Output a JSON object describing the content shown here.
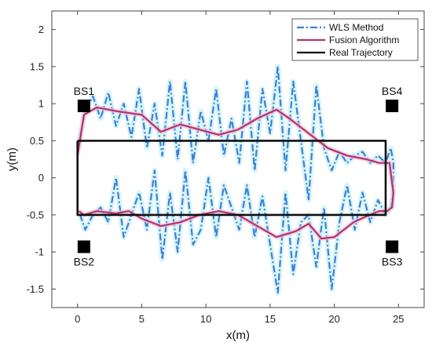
{
  "chart_data": {
    "type": "line",
    "xlabel": "x(m)",
    "ylabel": "y(m)",
    "xlim": [
      -2,
      27
    ],
    "ylim": [
      -1.75,
      2.25
    ],
    "xticks": [
      0,
      5,
      10,
      15,
      20,
      25
    ],
    "yticks": [
      -1.5,
      -1,
      -0.5,
      0,
      0.5,
      1,
      1.5,
      2
    ],
    "ytick_labels": [
      "-1.5",
      "-1",
      "-0.5",
      "0",
      "0.5",
      "1",
      "1.5",
      "2"
    ],
    "grid": false,
    "legend_position": "top-right",
    "series": [
      {
        "name": "WLS Method",
        "color": "#3a7fd9",
        "style": "dashdot",
        "x": [
          0,
          0.6,
          1.2,
          1.8,
          2.4,
          3.0,
          3.6,
          4.2,
          4.8,
          5.4,
          6.0,
          6.6,
          7.2,
          7.8,
          8.4,
          9.0,
          9.6,
          10.2,
          10.8,
          11.4,
          12.0,
          12.6,
          13.2,
          13.8,
          14.4,
          15.0,
          15.6,
          16.2,
          16.8,
          17.4,
          18.0,
          18.6,
          19.2,
          19.8,
          20.4,
          21.0,
          21.6,
          22.2,
          22.8,
          23.4,
          24.0,
          24.4,
          24.6,
          24.6,
          24.4,
          24.0,
          23.4,
          22.8,
          22.2,
          21.6,
          21.0,
          20.4,
          19.8,
          19.2,
          18.6,
          18.0,
          17.4,
          16.8,
          16.2,
          15.6,
          15.0,
          14.4,
          13.8,
          13.2,
          12.6,
          12.0,
          11.4,
          10.8,
          10.2,
          9.6,
          9.0,
          8.4,
          7.8,
          7.2,
          6.6,
          6.0,
          5.4,
          4.8,
          4.2,
          3.6,
          3.0,
          2.4,
          1.8,
          1.2,
          0.6,
          0.2
        ],
        "values": [
          0.4,
          0.9,
          1.1,
          0.8,
          1.15,
          0.7,
          1.0,
          0.55,
          1.2,
          0.4,
          1.0,
          0.3,
          1.3,
          0.25,
          1.3,
          0.2,
          0.9,
          0.5,
          1.2,
          0.3,
          0.8,
          0.2,
          1.3,
          0.1,
          1.2,
          0.6,
          1.5,
          0.1,
          1.3,
          0.5,
          -0.3,
          1.25,
          0.4,
          0.1,
          0.35,
          0.2,
          0.3,
          0.35,
          0.2,
          0.3,
          0.2,
          0.4,
          0.2,
          -0.2,
          -0.4,
          -0.5,
          -0.3,
          -0.6,
          -0.2,
          -0.7,
          -0.1,
          -0.6,
          -1.5,
          -0.4,
          -1.2,
          -0.5,
          -0.6,
          -1.3,
          -0.2,
          -1.55,
          -0.9,
          -0.25,
          -0.8,
          -0.1,
          -0.7,
          -0.4,
          -0.1,
          -0.8,
          0.0,
          -0.7,
          -0.9,
          0.1,
          -1.0,
          -0.2,
          -1.1,
          0.1,
          -0.7,
          -0.2,
          -0.5,
          -0.8,
          0.0,
          -0.6,
          -0.4,
          -0.5,
          -0.7,
          -0.5
        ]
      },
      {
        "name": "Fusion Algorithm",
        "color": "#b0336f",
        "style": "solid",
        "x": [
          0,
          0.5,
          1.5,
          3,
          5,
          6.5,
          8,
          9.5,
          11,
          12.5,
          14,
          15.5,
          16.5,
          18,
          19.5,
          21,
          22.5,
          23.5,
          24.3,
          24.6,
          24.5,
          24.1,
          23.5,
          22.5,
          21.5,
          20,
          19,
          18,
          17,
          15.5,
          14,
          12.5,
          11,
          9.5,
          8,
          6.5,
          5,
          4,
          3,
          1.5,
          0.5,
          0.1
        ],
        "values": [
          0.3,
          0.85,
          0.95,
          0.9,
          0.85,
          0.62,
          0.72,
          0.65,
          0.58,
          0.65,
          0.8,
          0.92,
          0.8,
          0.6,
          0.4,
          0.3,
          0.25,
          0.2,
          0.2,
          -0.2,
          -0.4,
          -0.45,
          -0.45,
          -0.52,
          -0.6,
          -0.8,
          -0.82,
          -0.62,
          -0.72,
          -0.8,
          -0.65,
          -0.5,
          -0.45,
          -0.5,
          -0.6,
          -0.65,
          -0.55,
          -0.45,
          -0.48,
          -0.45,
          -0.5,
          -0.45
        ]
      },
      {
        "name": "Real Trajectory",
        "color": "#111111",
        "style": "solid",
        "x": [
          0,
          24,
          24,
          0,
          0
        ],
        "values": [
          0.5,
          0.5,
          -0.5,
          -0.5,
          0.5
        ]
      }
    ],
    "base_stations": [
      {
        "label": "BS1",
        "x": 0.5,
        "y": 0.97
      },
      {
        "label": "BS2",
        "x": 0.5,
        "y": -0.93
      },
      {
        "label": "BS3",
        "x": 24.5,
        "y": -0.93
      },
      {
        "label": "BS4",
        "x": 24.5,
        "y": 0.97
      }
    ]
  }
}
